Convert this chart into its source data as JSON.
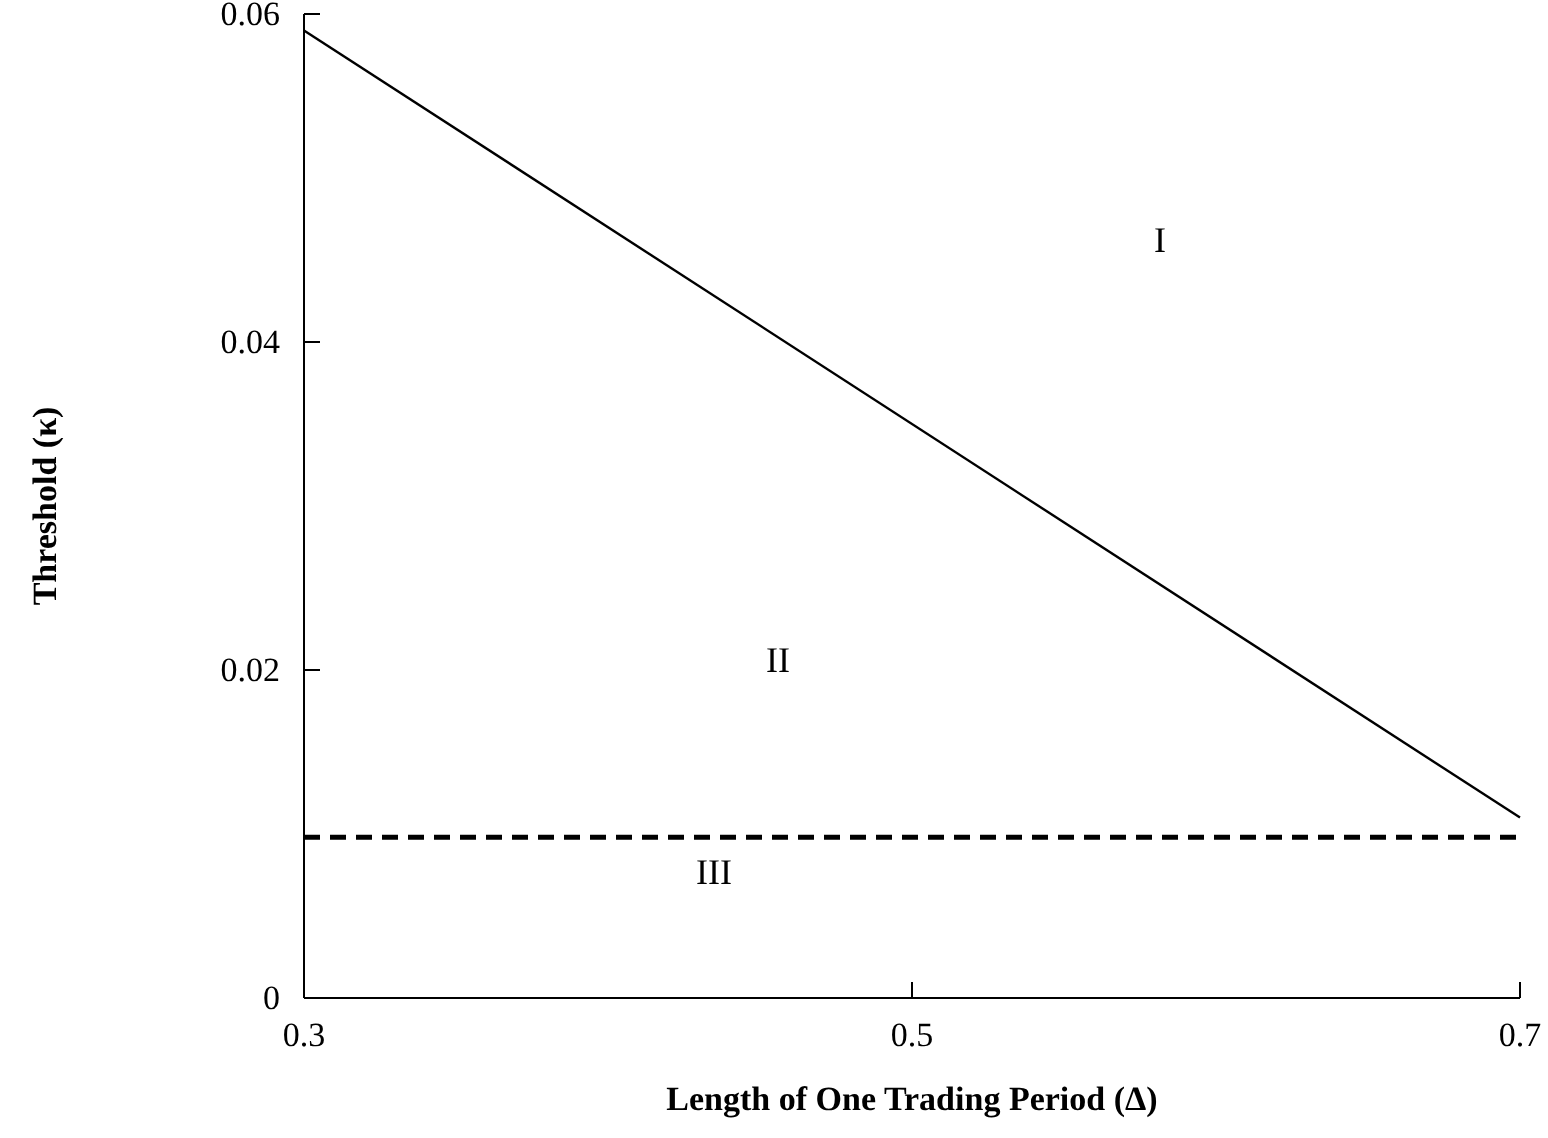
{
  "chart_data": {
    "type": "line",
    "xlabel": "Length of One Trading Period (Δ)",
    "ylabel": "Threshold (κ)",
    "series": [
      {
        "x": [
          0.3,
          0.7
        ],
        "values": [
          0.059,
          0.011
        ],
        "color": "#000000"
      }
    ],
    "xlim": [
      0.3,
      0.7
    ],
    "xticks": [
      0.3,
      0.5,
      0.7
    ],
    "ylim": [
      0,
      0.06
    ],
    "yticks": [
      0,
      0.02,
      0.04,
      0.06
    ],
    "ref_lines": [
      {
        "axis": "y",
        "value": 0.0098,
        "color": "#000000",
        "line_style": "dashed"
      }
    ],
    "annotations": [
      "I",
      "II",
      "III"
    ],
    "grid": false,
    "marker": "none",
    "line_style": "solid"
  }
}
